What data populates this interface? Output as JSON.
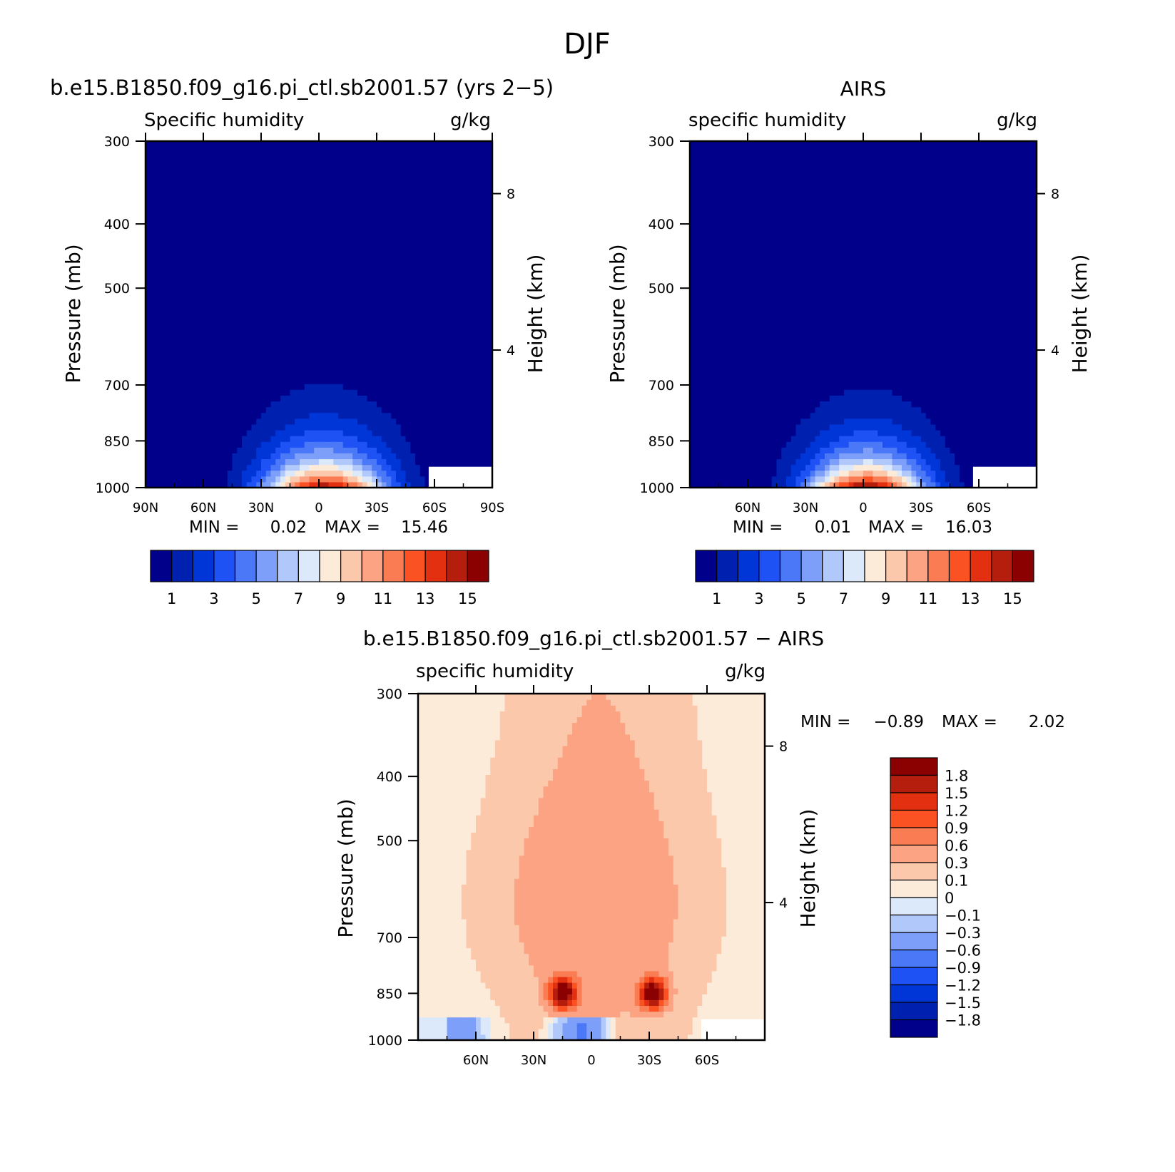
{
  "figure_title": "DJF",
  "colors": {
    "absolute_palette": [
      "#00008b",
      "#0020b0",
      "#0036d8",
      "#1f52f5",
      "#4a78f7",
      "#7d9ff9",
      "#b1c8fb",
      "#dbe9fb",
      "#fdebd9",
      "#fcc8ac",
      "#fba383",
      "#fa7c52",
      "#fa5222",
      "#e23010",
      "#b51d0d",
      "#8b0000"
    ],
    "difference_palette": [
      "#00008b",
      "#0020b0",
      "#0036d8",
      "#1f52f5",
      "#4a78f7",
      "#7d9ff9",
      "#b1c8fb",
      "#dbe9fb",
      "#fdebd9",
      "#fcc8ac",
      "#fba383",
      "#fa7c52",
      "#fa5222",
      "#e23010",
      "#b51d0d",
      "#8b0000"
    ],
    "missing": "#ffffff"
  },
  "chart_data": [
    {
      "type": "contour",
      "title": "b.e15.B1850.f09_g16.pi_ctl.sb2001.57 (yrs 2−5)",
      "subtitle_left": "Specific humidity",
      "subtitle_right": "g/kg",
      "xlabel": "",
      "ylabel": "Pressure (mb)",
      "ylabel_right": "Height (km)",
      "x_ticks": [
        "90N",
        "60N",
        "30N",
        "0",
        "30S",
        "60S",
        "90S"
      ],
      "x_tick_values": [
        90,
        60,
        30,
        0,
        -30,
        -60,
        -90
      ],
      "x_range": [
        90,
        -90
      ],
      "y_ticks": [
        "300",
        "400",
        "500",
        "700",
        "850",
        "1000"
      ],
      "y_tick_values": [
        300,
        400,
        500,
        700,
        850,
        1000
      ],
      "y_range": [
        1000,
        300
      ],
      "y_right_ticks": [
        "8",
        "4"
      ],
      "y_right_tick_values": [
        8,
        4
      ],
      "min_label": "MIN =",
      "min_value": "0.02",
      "max_label": "MAX =",
      "max_value": "15.46",
      "levels": [
        1,
        2,
        3,
        4,
        5,
        6,
        7,
        8,
        9,
        10,
        11,
        12,
        13,
        14,
        15
      ],
      "colorbar_labels": [
        "1",
        "3",
        "5",
        "7",
        "9",
        "11",
        "13",
        "15"
      ],
      "field": {
        "peak_latitude": -3,
        "peak_value": 15.46,
        "surface_falloff_width": 22,
        "scale_height_hpa": 110
      }
    },
    {
      "type": "contour",
      "title": "AIRS",
      "subtitle_left": "specific humidity",
      "subtitle_right": "g/kg",
      "xlabel": "",
      "ylabel": "Pressure (mb)",
      "ylabel_right": "Height (km)",
      "x_ticks": [
        "60N",
        "30N",
        "0",
        "30S",
        "60S"
      ],
      "x_tick_values": [
        60,
        30,
        0,
        -30,
        -60
      ],
      "x_range": [
        90,
        -90
      ],
      "y_ticks": [
        "300",
        "400",
        "500",
        "700",
        "850",
        "1000"
      ],
      "y_tick_values": [
        300,
        400,
        500,
        700,
        850,
        1000
      ],
      "y_range": [
        1000,
        300
      ],
      "y_right_ticks": [
        "8",
        "4"
      ],
      "y_right_tick_values": [
        8,
        4
      ],
      "min_label": "MIN =",
      "min_value": "0.01",
      "max_label": "MAX =",
      "max_value": "16.03",
      "levels": [
        1,
        2,
        3,
        4,
        5,
        6,
        7,
        8,
        9,
        10,
        11,
        12,
        13,
        14,
        15
      ],
      "colorbar_labels": [
        "1",
        "3",
        "5",
        "7",
        "9",
        "11",
        "13",
        "15"
      ],
      "field": {
        "peak_latitude": -2,
        "peak_value": 16.03,
        "surface_falloff_width": 21,
        "scale_height_hpa": 105
      }
    },
    {
      "type": "contour",
      "title": "b.e15.B1850.f09_g16.pi_ctl.sb2001.57 − AIRS",
      "subtitle_left": "specific humidity",
      "subtitle_right": "g/kg",
      "xlabel": "",
      "ylabel": "Pressure (mb)",
      "ylabel_right": "Height (km)",
      "x_ticks": [
        "60N",
        "30N",
        "0",
        "30S",
        "60S"
      ],
      "x_tick_values": [
        60,
        30,
        0,
        -30,
        -60
      ],
      "x_range": [
        90,
        -90
      ],
      "y_ticks": [
        "300",
        "400",
        "500",
        "700",
        "850",
        "1000"
      ],
      "y_tick_values": [
        300,
        400,
        500,
        700,
        850,
        1000
      ],
      "y_range": [
        1000,
        300
      ],
      "y_right_ticks": [
        "8",
        "4"
      ],
      "y_right_tick_values": [
        8,
        4
      ],
      "min_label": "MIN =",
      "min_value": "−0.89",
      "max_label": "MAX =",
      "max_value": "2.02",
      "levels": [
        -1.8,
        -1.5,
        -1.2,
        -0.9,
        -0.6,
        -0.3,
        -0.1,
        0,
        0.1,
        0.3,
        0.6,
        0.9,
        1.2,
        1.5,
        1.8
      ],
      "colorbar_labels": [
        "1.8",
        "1.5",
        "1.2",
        "0.9",
        "0.6",
        "0.3",
        "0.1",
        "0",
        "−0.1",
        "−0.3",
        "−0.6",
        "−0.9",
        "−1.2",
        "−1.5",
        "−1.8"
      ],
      "field": {
        "hotspot_latitudes": [
          15,
          -32
        ],
        "hotspot_pressure": 850,
        "hotspot_value": 2.02
      }
    }
  ]
}
